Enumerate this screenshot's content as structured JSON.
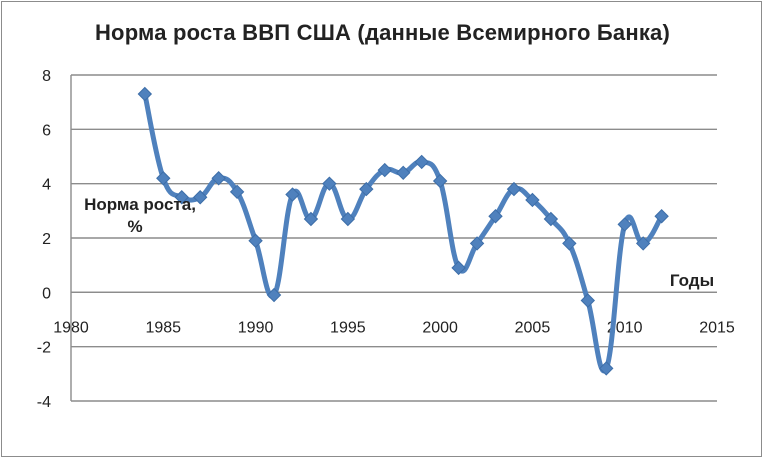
{
  "chart_data": {
    "type": "line",
    "title": "Норма роста ВВП США (данные Всемирного Банка)",
    "ylabel_line1": "Норма роста,",
    "ylabel_line2": "%",
    "xlabel": "Годы",
    "xlim": [
      1980,
      2015
    ],
    "ylim": [
      -4,
      8
    ],
    "x_ticks": [
      1980,
      1985,
      1990,
      1995,
      2000,
      2005,
      2010,
      2015
    ],
    "y_ticks": [
      -4,
      -2,
      0,
      2,
      4,
      6,
      8
    ],
    "grid": true,
    "series": [
      {
        "color": "#4f81bd",
        "marker": "diamond",
        "x": [
          1984,
          1985,
          1986,
          1987,
          1988,
          1989,
          1990,
          1991,
          1992,
          1993,
          1994,
          1995,
          1996,
          1997,
          1998,
          1999,
          2000,
          2001,
          2002,
          2003,
          2004,
          2005,
          2006,
          2007,
          2008,
          2009,
          2010,
          2011,
          2012
        ],
        "y": [
          7.3,
          4.2,
          3.5,
          3.5,
          4.2,
          3.7,
          1.9,
          -0.1,
          3.6,
          2.7,
          4.0,
          2.7,
          3.8,
          4.5,
          4.4,
          4.8,
          4.1,
          0.9,
          1.8,
          2.8,
          3.8,
          3.4,
          2.7,
          1.8,
          -0.3,
          -2.8,
          2.5,
          1.8,
          2.8
        ]
      }
    ]
  }
}
